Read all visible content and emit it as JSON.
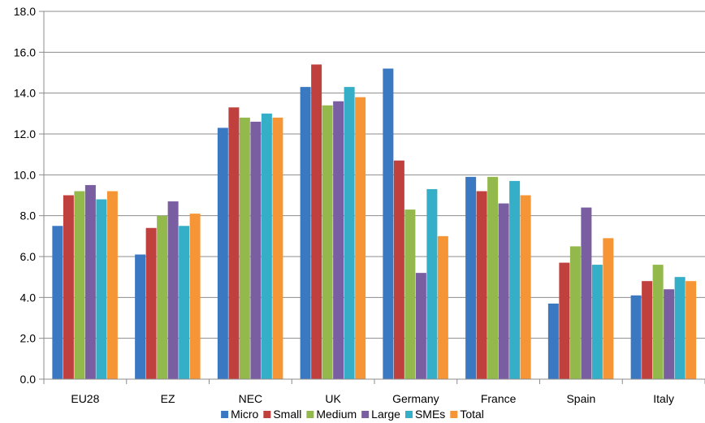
{
  "chart_data": {
    "type": "bar",
    "title": "",
    "xlabel": "",
    "ylabel": "",
    "ylim": [
      0,
      18
    ],
    "yticks": [
      "0.0",
      "2.0",
      "4.0",
      "6.0",
      "8.0",
      "10.0",
      "12.0",
      "14.0",
      "16.0",
      "18.0"
    ],
    "grid": true,
    "legend_position": "bottom",
    "categories": [
      "EU28",
      "EZ",
      "NEC",
      "UK",
      "Germany",
      "France",
      "Spain",
      "Italy"
    ],
    "series": [
      {
        "name": "Micro",
        "color": "#3b78c2",
        "values": [
          7.5,
          6.1,
          12.3,
          14.3,
          15.2,
          9.9,
          3.7,
          4.1
        ]
      },
      {
        "name": "Small",
        "color": "#c0403d",
        "values": [
          9.0,
          7.4,
          13.3,
          15.4,
          10.7,
          9.2,
          5.7,
          4.8
        ]
      },
      {
        "name": "Medium",
        "color": "#93b94c",
        "values": [
          9.2,
          8.0,
          12.8,
          13.4,
          8.3,
          9.9,
          6.5,
          5.6
        ]
      },
      {
        "name": "Large",
        "color": "#7a5ea2",
        "values": [
          9.5,
          8.7,
          12.6,
          13.6,
          5.2,
          8.6,
          8.4,
          4.4
        ]
      },
      {
        "name": "SMEs",
        "color": "#35aec8",
        "values": [
          8.8,
          7.5,
          13.0,
          14.3,
          9.3,
          9.7,
          5.6,
          5.0
        ]
      },
      {
        "name": "Total",
        "color": "#f59536",
        "values": [
          9.2,
          8.1,
          12.8,
          13.8,
          7.0,
          9.0,
          6.9,
          4.8
        ]
      }
    ]
  }
}
